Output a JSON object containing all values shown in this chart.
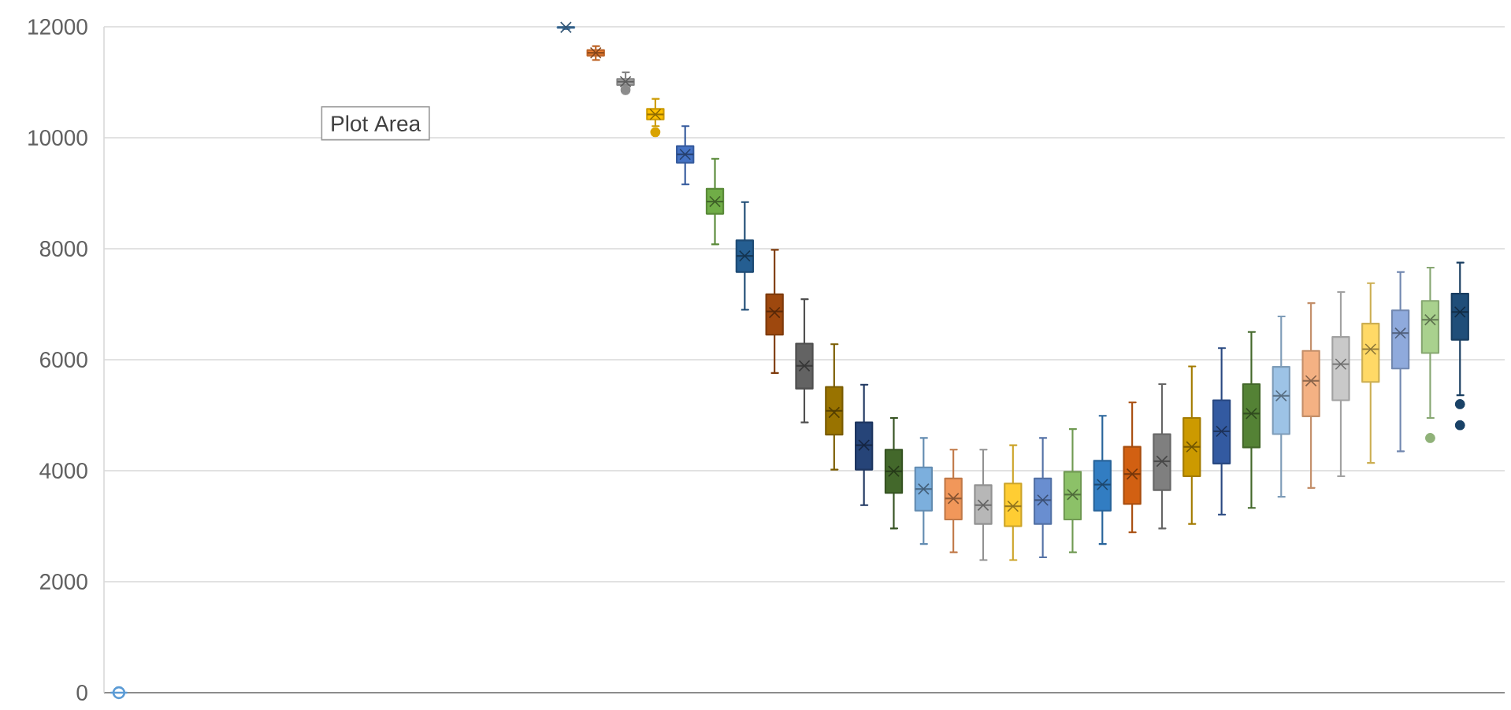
{
  "chart_data": {
    "type": "box",
    "categories": [
      null,
      null,
      null,
      null,
      null,
      null,
      null,
      null,
      null,
      null,
      null,
      null,
      null,
      null,
      null,
      null,
      null,
      null,
      null,
      null,
      null,
      null,
      null,
      null,
      null,
      null,
      null,
      null,
      null,
      null,
      null,
      null,
      null,
      null,
      null,
      null,
      null,
      null,
      null,
      null,
      null,
      null,
      null,
      null,
      null,
      null,
      null
    ],
    "boxes": [
      {
        "low": 0,
        "q1": 0,
        "median": 0,
        "q3": 0,
        "high": 0,
        "mean": 0
      },
      null,
      null,
      null,
      null,
      null,
      null,
      null,
      null,
      null,
      null,
      null,
      null,
      null,
      null,
      {
        "low": 11960,
        "q1": 11980,
        "median": 11990,
        "q3": 11995,
        "high": 12000,
        "mean": 11990
      },
      {
        "low": 11400,
        "q1": 11480,
        "median": 11530,
        "q3": 11580,
        "high": 11650,
        "mean": 11530
      },
      {
        "low": 10900,
        "q1": 10950,
        "median": 11010,
        "q3": 11060,
        "high": 11180,
        "mean": 11010,
        "outliers": [
          10860
        ]
      },
      {
        "low": 10210,
        "q1": 10330,
        "median": 10420,
        "q3": 10520,
        "high": 10700,
        "mean": 10420,
        "outliers": [
          10100
        ]
      },
      {
        "low": 9160,
        "q1": 9550,
        "median": 9700,
        "q3": 9850,
        "high": 10210,
        "mean": 9700
      },
      {
        "low": 8080,
        "q1": 8630,
        "median": 8850,
        "q3": 9080,
        "high": 9620,
        "mean": 8850
      },
      {
        "low": 6900,
        "q1": 7580,
        "median": 7870,
        "q3": 8150,
        "high": 8840,
        "mean": 7870
      },
      {
        "low": 5760,
        "q1": 6450,
        "median": 6870,
        "q3": 7180,
        "high": 7980,
        "mean": 6850
      },
      {
        "low": 4870,
        "q1": 5480,
        "median": 5890,
        "q3": 6290,
        "high": 7090,
        "mean": 5890
      },
      {
        "low": 4020,
        "q1": 4650,
        "median": 5080,
        "q3": 5510,
        "high": 6280,
        "mean": 5050
      },
      {
        "low": 3380,
        "q1": 4020,
        "median": 4460,
        "q3": 4870,
        "high": 5550,
        "mean": 4460
      },
      {
        "low": 2960,
        "q1": 3600,
        "median": 3990,
        "q3": 4380,
        "high": 4950,
        "mean": 3990
      },
      {
        "low": 2680,
        "q1": 3280,
        "median": 3670,
        "q3": 4060,
        "high": 4590,
        "mean": 3670
      },
      {
        "low": 2530,
        "q1": 3120,
        "median": 3500,
        "q3": 3860,
        "high": 4380,
        "mean": 3500
      },
      {
        "low": 2390,
        "q1": 3040,
        "median": 3380,
        "q3": 3740,
        "high": 4380,
        "mean": 3380
      },
      {
        "low": 2390,
        "q1": 3000,
        "median": 3360,
        "q3": 3770,
        "high": 4460,
        "mean": 3360
      },
      {
        "low": 2440,
        "q1": 3040,
        "median": 3470,
        "q3": 3860,
        "high": 4590,
        "mean": 3470
      },
      {
        "low": 2530,
        "q1": 3120,
        "median": 3570,
        "q3": 3980,
        "high": 4750,
        "mean": 3570
      },
      {
        "low": 2680,
        "q1": 3280,
        "median": 3750,
        "q3": 4180,
        "high": 4990,
        "mean": 3750
      },
      {
        "low": 2890,
        "q1": 3400,
        "median": 3940,
        "q3": 4430,
        "high": 5230,
        "mean": 3940
      },
      {
        "low": 2960,
        "q1": 3650,
        "median": 4170,
        "q3": 4660,
        "high": 5560,
        "mean": 4170
      },
      {
        "low": 3040,
        "q1": 3900,
        "median": 4430,
        "q3": 4950,
        "high": 5880,
        "mean": 4430
      },
      {
        "low": 3210,
        "q1": 4130,
        "median": 4710,
        "q3": 5270,
        "high": 6210,
        "mean": 4710
      },
      {
        "low": 3330,
        "q1": 4420,
        "median": 5030,
        "q3": 5560,
        "high": 6500,
        "mean": 5030
      },
      {
        "low": 3530,
        "q1": 4660,
        "median": 5350,
        "q3": 5870,
        "high": 6780,
        "mean": 5350
      },
      {
        "low": 3690,
        "q1": 4980,
        "median": 5620,
        "q3": 6160,
        "high": 7020,
        "mean": 5620
      },
      {
        "low": 3900,
        "q1": 5270,
        "median": 5920,
        "q3": 6410,
        "high": 7220,
        "mean": 5920
      },
      {
        "low": 4140,
        "q1": 5600,
        "median": 6190,
        "q3": 6650,
        "high": 7380,
        "mean": 6190
      },
      {
        "low": 4350,
        "q1": 5840,
        "median": 6480,
        "q3": 6890,
        "high": 7580,
        "mean": 6480
      },
      {
        "low": 4950,
        "q1": 6120,
        "median": 6720,
        "q3": 7060,
        "high": 7660,
        "mean": 6720,
        "outliers": [
          4590
        ]
      },
      {
        "low": 5360,
        "q1": 6360,
        "median": 6860,
        "q3": 7190,
        "high": 7750,
        "mean": 6860,
        "outliers": [
          5200,
          4820
        ]
      },
      null
    ],
    "colors": [
      "#5b9bd5",
      null,
      null,
      null,
      null,
      null,
      null,
      null,
      null,
      null,
      null,
      null,
      null,
      null,
      null,
      "#5b9bd5",
      "#ed7d31",
      "#a5a5a5",
      "#ffc000",
      "#4472c4",
      "#70ad47",
      "#255e91",
      "#9e480e",
      "#636363",
      "#997300",
      "#264478",
      "#43682b",
      "#7cafdd",
      "#f1975a",
      "#b7b7b7",
      "#ffcd33",
      "#698ed0",
      "#8cc168",
      "#327dc2",
      "#d26012",
      "#7f7f7f",
      "#cc9a00",
      "#335aa1",
      "#548235",
      "#9dc3e6",
      "#f4b183",
      "#c9c9c9",
      "#ffd966",
      "#8faadc",
      "#a9d18e",
      "#1f4e79",
      null
    ],
    "ylim": [
      0,
      12000
    ],
    "yticks": [
      0,
      2000,
      4000,
      6000,
      8000,
      10000,
      12000
    ],
    "grid": "y",
    "annotations": [
      "Plot Area"
    ]
  }
}
